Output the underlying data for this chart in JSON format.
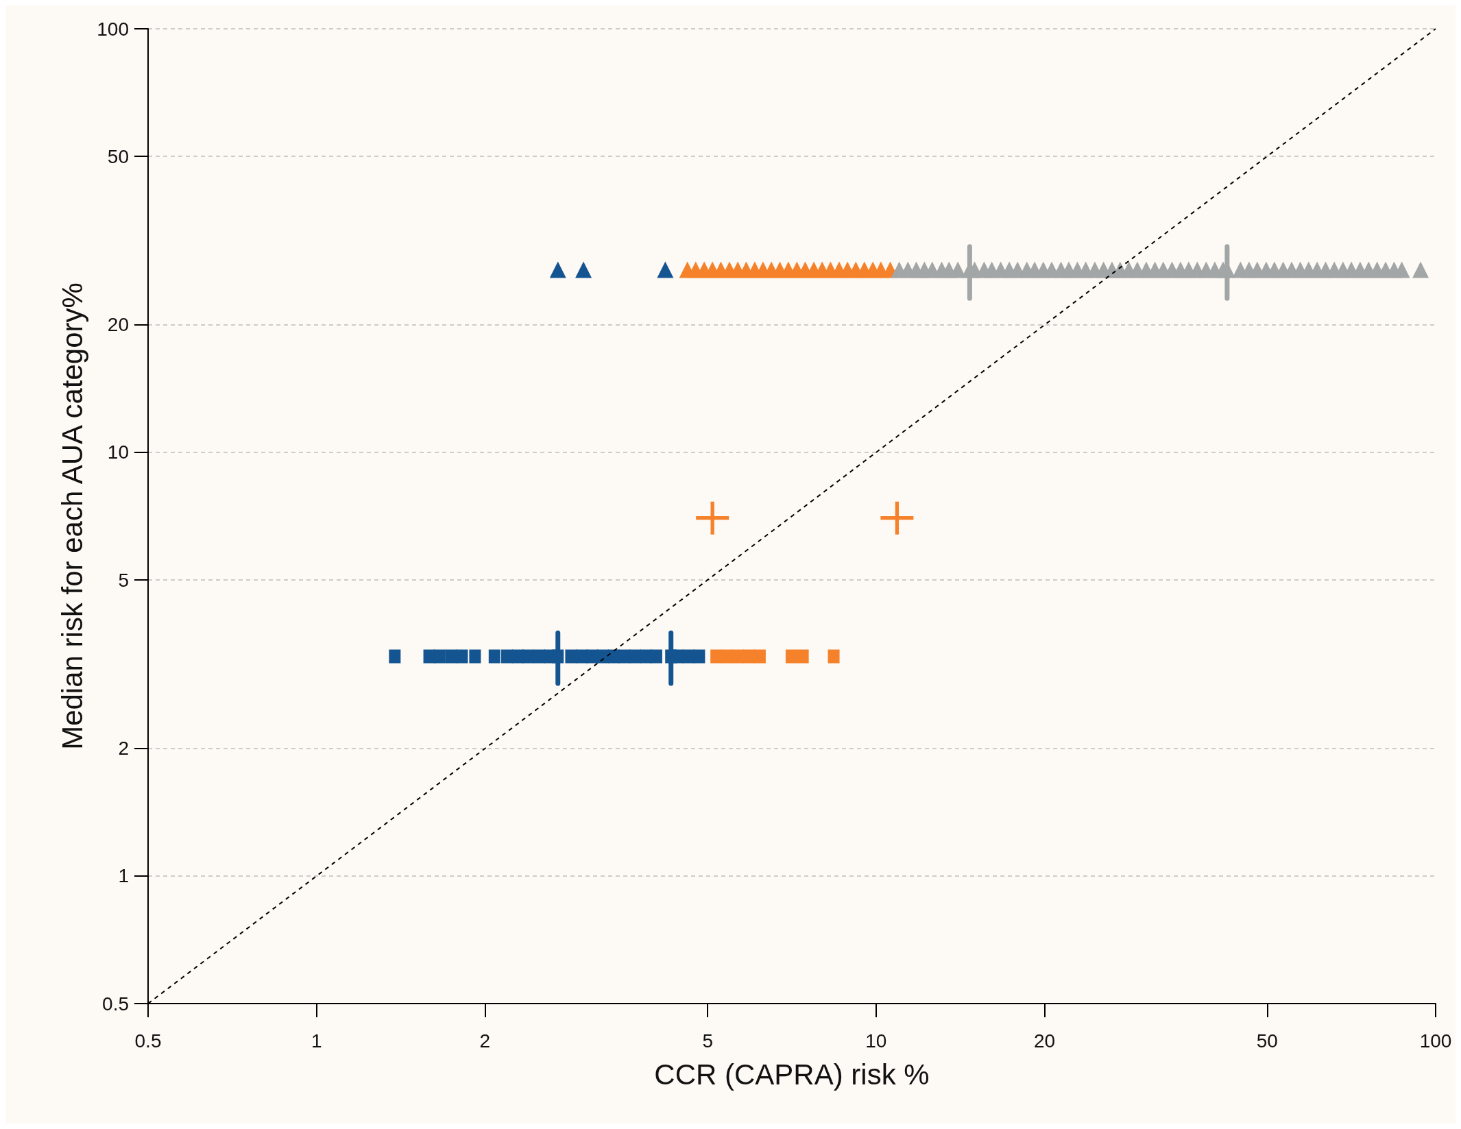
{
  "chart_data": {
    "type": "scatter",
    "xlabel": "CCR (CAPRA) risk %",
    "ylabel": "Median risk for each AUA category%",
    "log": "xy",
    "grid": "y",
    "xlim": [
      0.5,
      100
    ],
    "xticks": [
      0.5,
      1,
      2,
      5,
      10,
      20,
      50,
      100
    ],
    "ylim": [
      0.5,
      100
    ],
    "yticks": [
      0.5,
      1,
      2,
      5,
      10,
      20,
      50,
      100
    ],
    "series": [
      {
        "marker": "square",
        "color": "#145591",
        "x": [
          1.38,
          1.59,
          1.66,
          1.74,
          1.82,
          1.92,
          2.08,
          2.19,
          2.29,
          2.39,
          2.5,
          2.61,
          2.7,
          2.85,
          2.98,
          3.11,
          3.25,
          3.4,
          3.55,
          3.71,
          3.88,
          4.05,
          4.3,
          4.42,
          4.62,
          4.83
        ],
        "values": [
          3.3,
          3.3,
          3.3,
          3.3,
          3.3,
          3.3,
          3.3,
          3.3,
          3.3,
          3.3,
          3.3,
          3.3,
          3.3,
          3.3,
          3.3,
          3.3,
          3.3,
          3.3,
          3.3,
          3.3,
          3.3,
          3.3,
          3.3,
          3.3,
          3.3,
          3.3
        ],
        "errors": [
          null,
          null,
          null,
          null,
          null,
          null,
          null,
          null,
          null,
          null,
          null,
          null,
          [
            2.85,
            3.75
          ],
          null,
          null,
          null,
          null,
          null,
          null,
          null,
          null,
          null,
          [
            2.85,
            3.75
          ],
          null,
          null,
          null
        ]
      },
      {
        "marker": "square",
        "color": "#f5822a",
        "x": [
          5.18,
          5.42,
          5.67,
          5.93,
          6.2,
          7.06,
          7.4,
          8.4
        ],
        "values": [
          3.3,
          3.3,
          3.3,
          3.3,
          3.3,
          3.3,
          3.3,
          3.3
        ]
      },
      {
        "marker": "cross",
        "color": "#f5822a",
        "x": [
          5.1,
          10.9
        ],
        "values": [
          7.0,
          7.0
        ]
      },
      {
        "marker": "triangle",
        "color": "#145591",
        "x": [
          2.7,
          3.0,
          4.2
        ],
        "values": [
          27,
          27,
          27
        ]
      },
      {
        "marker": "triangle",
        "color": "#f5822a",
        "x": [
          4.6,
          4.76,
          4.93,
          5.1,
          5.28,
          5.47,
          5.66,
          5.86,
          6.07,
          6.28,
          6.5,
          6.73,
          6.97,
          7.22,
          7.47,
          7.74,
          8.01,
          8.29,
          8.59,
          8.89,
          9.2,
          9.53,
          9.87,
          10.2,
          10.6
        ],
        "values": [
          27,
          27,
          27,
          27,
          27,
          27,
          27,
          27,
          27,
          27,
          27,
          27,
          27,
          27,
          27,
          27,
          27,
          27,
          27,
          27,
          27,
          27,
          27,
          27,
          27
        ]
      },
      {
        "marker": "triangle",
        "color": "#a3a6a6",
        "x": [
          11,
          11.4,
          11.8,
          12.2,
          12.6,
          13.1,
          13.5,
          14,
          14.7,
          15,
          15.6,
          16.1,
          16.7,
          17.3,
          17.9,
          18.6,
          19.2,
          19.9,
          20.6,
          21.4,
          22.1,
          22.9,
          23.7,
          24.6,
          25.5,
          26.4,
          27.3,
          28.3,
          29.3,
          30.4,
          31.5,
          32.6,
          33.8,
          35,
          36.2,
          37.5,
          38.9,
          40.3,
          41.7,
          42.4,
          44.8,
          46.4,
          48,
          49.8,
          51.5,
          53.4,
          55.3,
          57.3,
          59.3,
          61.4,
          63.6,
          65.9,
          68.3,
          70.7,
          73.3,
          75.9,
          78.6,
          81.4,
          84.3,
          87,
          94
        ],
        "values": [
          27,
          27,
          27,
          27,
          27,
          27,
          27,
          27,
          27,
          27,
          27,
          27,
          27,
          27,
          27,
          27,
          27,
          27,
          27,
          27,
          27,
          27,
          27,
          27,
          27,
          27,
          27,
          27,
          27,
          27,
          27,
          27,
          27,
          27,
          27,
          27,
          27,
          27,
          27,
          27,
          27,
          27,
          27,
          27,
          27,
          27,
          27,
          27,
          27,
          27,
          27,
          27,
          27,
          27,
          27,
          27,
          27,
          27,
          27,
          27,
          27
        ],
        "errors": [
          null,
          null,
          null,
          null,
          null,
          null,
          null,
          null,
          [
            23.1,
            30.6
          ],
          null,
          null,
          null,
          null,
          null,
          null,
          null,
          null,
          null,
          null,
          null,
          null,
          null,
          null,
          null,
          null,
          null,
          null,
          null,
          null,
          null,
          null,
          null,
          null,
          null,
          null,
          null,
          null,
          null,
          null,
          [
            23.1,
            30.6
          ],
          null,
          null,
          null,
          null,
          null,
          null,
          null,
          null,
          null,
          null,
          null,
          null,
          null,
          null,
          null,
          null,
          null,
          null,
          null,
          null,
          null
        ]
      },
      {
        "type": "line",
        "line_style": "dashed",
        "color": "#000000",
        "x": [
          0.5,
          100
        ],
        "values": [
          0.5,
          100
        ]
      }
    ]
  }
}
